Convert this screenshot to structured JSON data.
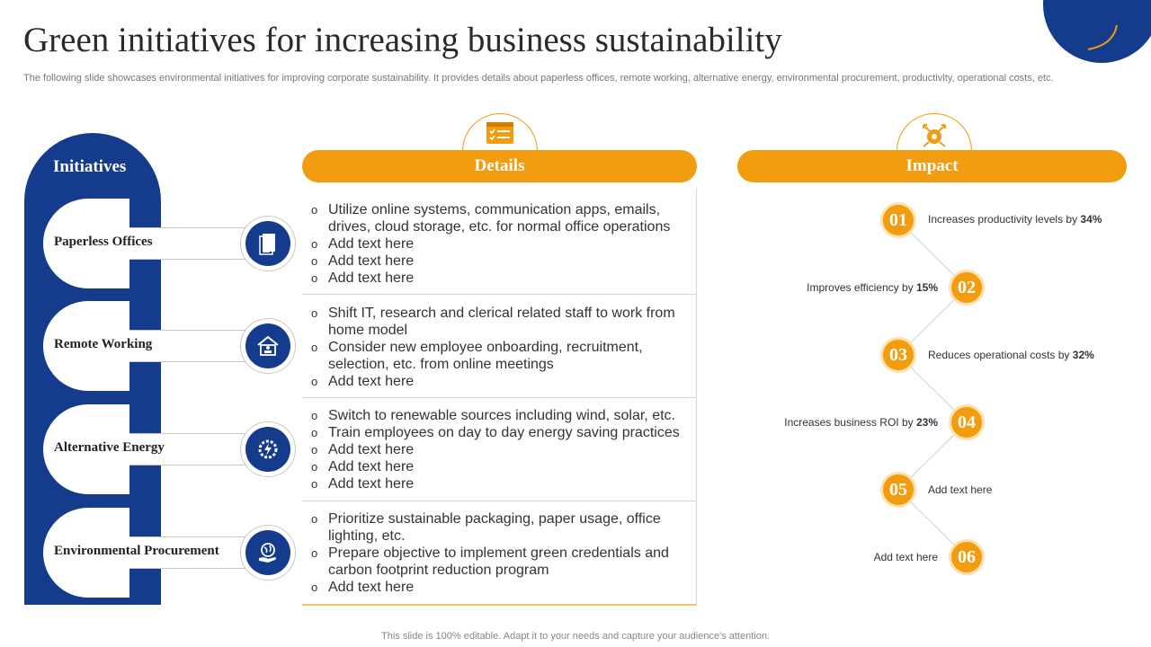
{
  "title": "Green initiatives for increasing business sustainability",
  "subtitle": "The following slide showcases environmental initiatives for improving corporate sustainability. It provides details about paperless offices, remote working, alternative energy, environmental procurement, productivity, operational costs, etc.",
  "footer": "This slide is 100% editable. Adapt it to your needs and capture your audience's attention.",
  "colors": {
    "navy": "#143b8c",
    "orange": "#f29c0f"
  },
  "initiatives": {
    "header": "Initiatives",
    "items": [
      {
        "label": "Paperless Offices",
        "icon": "document-icon"
      },
      {
        "label": "Remote Working",
        "icon": "home-office-icon"
      },
      {
        "label": "Alternative Energy",
        "icon": "energy-gear-icon"
      },
      {
        "label": "Environmental  Procurement",
        "icon": "globe-hand-icon"
      }
    ]
  },
  "details": {
    "header": "Details",
    "icon": "checklist-icon",
    "blocks": [
      {
        "lines": [
          "Utilize online systems, communication apps, emails,",
          "drives, cloud storage, etc. for normal office operations",
          "Add text here",
          "Add text here",
          "Add text here"
        ],
        "bullets": [
          true,
          false,
          true,
          true,
          true
        ]
      },
      {
        "lines": [
          "Shift IT, research and clerical related staff to work from",
          "home model",
          "Consider new employee onboarding, recruitment,",
          "selection, etc. from online meetings",
          "Add text here"
        ],
        "bullets": [
          true,
          false,
          true,
          false,
          true
        ]
      },
      {
        "lines": [
          "Switch to renewable sources including wind, solar, etc.",
          "Train employees on day to day energy saving practices",
          "Add text here",
          "Add text here",
          "Add text here"
        ],
        "bullets": [
          true,
          true,
          true,
          true,
          true
        ]
      },
      {
        "lines": [
          "Prioritize sustainable packaging, paper usage, office",
          "lighting, etc.",
          "Prepare objective to implement green credentials and",
          "carbon footprint reduction program",
          "Add text here"
        ],
        "bullets": [
          true,
          false,
          true,
          false,
          true
        ]
      }
    ]
  },
  "impact": {
    "header": "Impact",
    "icon": "target-arrows-icon",
    "items": [
      {
        "num": "01",
        "text": "Increases productivity levels  by ",
        "value": "34%"
      },
      {
        "num": "02",
        "text": "Improves  efficiency  by ",
        "value": "15%"
      },
      {
        "num": "03",
        "text": "Reduces operational costs by ",
        "value": "32%"
      },
      {
        "num": "04",
        "text": "Increases business ROI by ",
        "value": "23%"
      },
      {
        "num": "05",
        "text": "Add text here",
        "value": ""
      },
      {
        "num": "06",
        "text": "Add text here",
        "value": ""
      }
    ]
  }
}
